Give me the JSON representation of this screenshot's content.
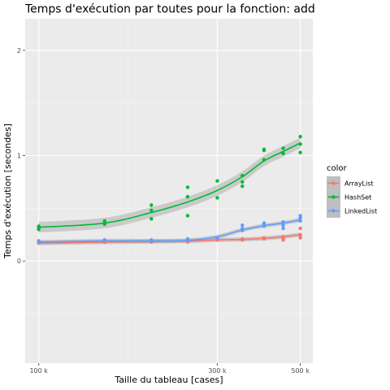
{
  "chart_data": {
    "type": "scatter",
    "title": "Temps d'exécution par toutes pour la fonction: add",
    "xlabel": "Taille du tableau [cases]",
    "ylabel": "Temps d'exécution [secondes]",
    "x_scale": "log",
    "xlim": [
      92000,
      540000
    ],
    "ylim": [
      -0.97,
      2.3
    ],
    "x_ticks": [
      100000,
      300000,
      500000
    ],
    "x_tick_labels": [
      "100 k",
      "300 k",
      "500 k"
    ],
    "y_ticks": [
      0,
      1,
      2
    ],
    "y_tick_labels": [
      "0",
      "1",
      "2"
    ],
    "grid": true,
    "legend": {
      "title": "color",
      "placement": "right"
    },
    "series": [
      {
        "name": "ArrayList",
        "color": "#F8766D",
        "points": [
          [
            100000,
            0.17
          ],
          [
            100000,
            0.19
          ],
          [
            150000,
            0.19
          ],
          [
            150000,
            0.18
          ],
          [
            200000,
            0.18
          ],
          [
            200000,
            0.19
          ],
          [
            250000,
            0.19
          ],
          [
            250000,
            0.18
          ],
          [
            300000,
            0.2
          ],
          [
            300000,
            0.21
          ],
          [
            350000,
            0.2
          ],
          [
            350000,
            0.21
          ],
          [
            400000,
            0.21
          ],
          [
            400000,
            0.22
          ],
          [
            450000,
            0.2
          ],
          [
            450000,
            0.23
          ],
          [
            450000,
            0.21
          ],
          [
            500000,
            0.22
          ],
          [
            500000,
            0.25
          ],
          [
            500000,
            0.31
          ],
          [
            500000,
            0.24
          ]
        ],
        "smooth": [
          [
            100000,
            0.17
          ],
          [
            150000,
            0.18
          ],
          [
            200000,
            0.185
          ],
          [
            250000,
            0.19
          ],
          [
            300000,
            0.2
          ],
          [
            350000,
            0.205
          ],
          [
            400000,
            0.215
          ],
          [
            450000,
            0.23
          ],
          [
            500000,
            0.25
          ]
        ]
      },
      {
        "name": "HashSet",
        "color": "#00BA38",
        "points": [
          [
            100000,
            0.3
          ],
          [
            100000,
            0.33
          ],
          [
            100000,
            0.32
          ],
          [
            150000,
            0.35
          ],
          [
            150000,
            0.37
          ],
          [
            150000,
            0.38
          ],
          [
            200000,
            0.4
          ],
          [
            200000,
            0.48
          ],
          [
            200000,
            0.53
          ],
          [
            250000,
            0.43
          ],
          [
            250000,
            0.61
          ],
          [
            250000,
            0.7
          ],
          [
            300000,
            0.6
          ],
          [
            300000,
            0.76
          ],
          [
            350000,
            0.71
          ],
          [
            350000,
            0.75
          ],
          [
            350000,
            0.81
          ],
          [
            400000,
            0.96
          ],
          [
            400000,
            1.05
          ],
          [
            400000,
            1.06
          ],
          [
            450000,
            1.02
          ],
          [
            450000,
            1.07
          ],
          [
            500000,
            1.03
          ],
          [
            500000,
            1.11
          ],
          [
            500000,
            1.18
          ]
        ],
        "smooth": [
          [
            100000,
            0.32
          ],
          [
            150000,
            0.36
          ],
          [
            200000,
            0.46
          ],
          [
            250000,
            0.56
          ],
          [
            300000,
            0.67
          ],
          [
            350000,
            0.8
          ],
          [
            400000,
            0.95
          ],
          [
            450000,
            1.04
          ],
          [
            500000,
            1.12
          ]
        ]
      },
      {
        "name": "LinkedList",
        "color": "#619CFF",
        "points": [
          [
            100000,
            0.18
          ],
          [
            100000,
            0.19
          ],
          [
            150000,
            0.19
          ],
          [
            150000,
            0.2
          ],
          [
            200000,
            0.19
          ],
          [
            200000,
            0.2
          ],
          [
            250000,
            0.2
          ],
          [
            250000,
            0.21
          ],
          [
            300000,
            0.21
          ],
          [
            300000,
            0.22
          ],
          [
            350000,
            0.29
          ],
          [
            350000,
            0.31
          ],
          [
            350000,
            0.34
          ],
          [
            400000,
            0.33
          ],
          [
            400000,
            0.35
          ],
          [
            400000,
            0.36
          ],
          [
            450000,
            0.31
          ],
          [
            450000,
            0.34
          ],
          [
            450000,
            0.37
          ],
          [
            500000,
            0.38
          ],
          [
            500000,
            0.41
          ],
          [
            500000,
            0.43
          ]
        ],
        "smooth": [
          [
            100000,
            0.18
          ],
          [
            150000,
            0.19
          ],
          [
            200000,
            0.19
          ],
          [
            250000,
            0.195
          ],
          [
            300000,
            0.23
          ],
          [
            350000,
            0.295
          ],
          [
            400000,
            0.335
          ],
          [
            450000,
            0.36
          ],
          [
            500000,
            0.39
          ]
        ]
      }
    ]
  }
}
